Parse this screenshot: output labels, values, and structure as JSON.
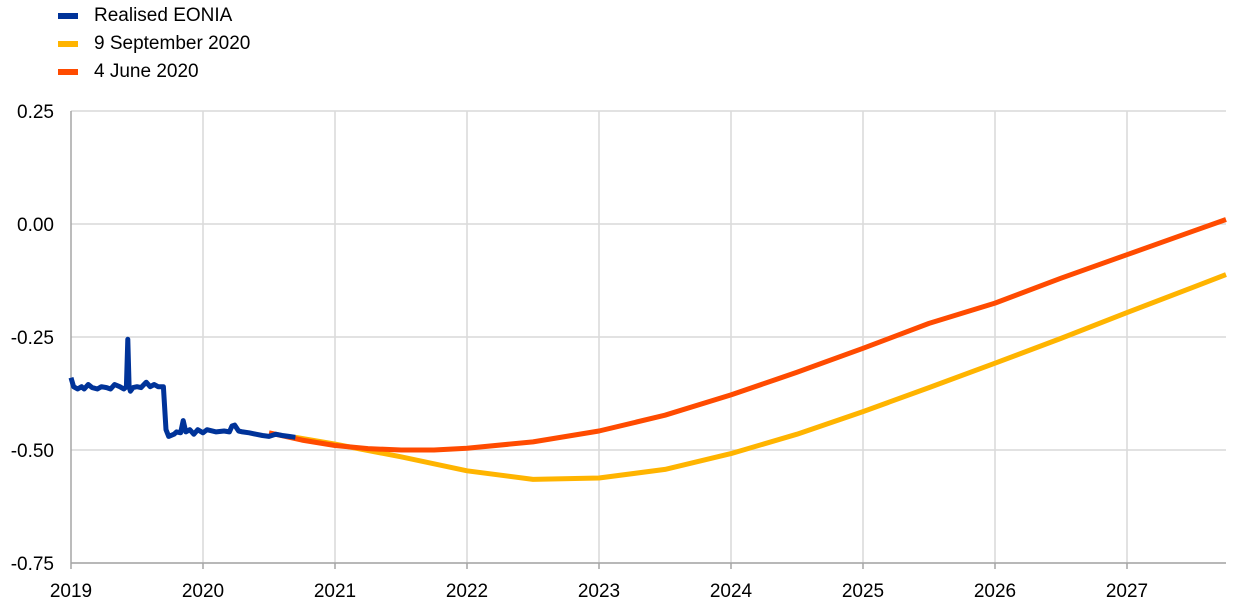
{
  "chart_data": {
    "type": "line",
    "title": "",
    "xlabel": "",
    "ylabel": "",
    "xlim": [
      2019,
      2027.75
    ],
    "ylim": [
      -0.75,
      0.25
    ],
    "x_ticks": [
      "2019",
      "2020",
      "2021",
      "2022",
      "2023",
      "2024",
      "2025",
      "2026",
      "2027"
    ],
    "y_ticks": [
      "0.25",
      "0.00",
      "-0.25",
      "-0.50",
      "-0.75"
    ],
    "grid": "vertical and horizontal",
    "legend_position": "top-left",
    "series": [
      {
        "name": "Realised EONIA",
        "color": "#003399",
        "points": [
          [
            2019.0,
            -0.34
          ],
          [
            2019.02,
            -0.36
          ],
          [
            2019.05,
            -0.365
          ],
          [
            2019.08,
            -0.36
          ],
          [
            2019.1,
            -0.365
          ],
          [
            2019.13,
            -0.355
          ],
          [
            2019.16,
            -0.362
          ],
          [
            2019.2,
            -0.365
          ],
          [
            2019.23,
            -0.36
          ],
          [
            2019.27,
            -0.362
          ],
          [
            2019.3,
            -0.365
          ],
          [
            2019.33,
            -0.355
          ],
          [
            2019.37,
            -0.36
          ],
          [
            2019.4,
            -0.365
          ],
          [
            2019.42,
            -0.36
          ],
          [
            2019.43,
            -0.255
          ],
          [
            2019.44,
            -0.36
          ],
          [
            2019.45,
            -0.37
          ],
          [
            2019.47,
            -0.362
          ],
          [
            2019.5,
            -0.36
          ],
          [
            2019.53,
            -0.362
          ],
          [
            2019.57,
            -0.35
          ],
          [
            2019.6,
            -0.36
          ],
          [
            2019.63,
            -0.355
          ],
          [
            2019.66,
            -0.36
          ],
          [
            2019.7,
            -0.36
          ],
          [
            2019.72,
            -0.455
          ],
          [
            2019.74,
            -0.47
          ],
          [
            2019.78,
            -0.465
          ],
          [
            2019.8,
            -0.46
          ],
          [
            2019.83,
            -0.462
          ],
          [
            2019.85,
            -0.435
          ],
          [
            2019.87,
            -0.46
          ],
          [
            2019.9,
            -0.455
          ],
          [
            2019.93,
            -0.465
          ],
          [
            2019.96,
            -0.455
          ],
          [
            2020.0,
            -0.462
          ],
          [
            2020.03,
            -0.455
          ],
          [
            2020.1,
            -0.46
          ],
          [
            2020.16,
            -0.458
          ],
          [
            2020.2,
            -0.46
          ],
          [
            2020.22,
            -0.447
          ],
          [
            2020.24,
            -0.445
          ],
          [
            2020.27,
            -0.458
          ],
          [
            2020.3,
            -0.46
          ],
          [
            2020.35,
            -0.462
          ],
          [
            2020.4,
            -0.465
          ],
          [
            2020.45,
            -0.468
          ],
          [
            2020.5,
            -0.47
          ],
          [
            2020.55,
            -0.465
          ],
          [
            2020.6,
            -0.468
          ],
          [
            2020.65,
            -0.47
          ],
          [
            2020.7,
            -0.472
          ]
        ]
      },
      {
        "name": "9 September 2020",
        "color": "#FFB400",
        "points": [
          [
            2020.7,
            -0.472
          ],
          [
            2021.0,
            -0.487
          ],
          [
            2021.5,
            -0.515
          ],
          [
            2022.0,
            -0.546
          ],
          [
            2022.5,
            -0.565
          ],
          [
            2023.0,
            -0.562
          ],
          [
            2023.5,
            -0.543
          ],
          [
            2024.0,
            -0.508
          ],
          [
            2024.5,
            -0.465
          ],
          [
            2025.0,
            -0.415
          ],
          [
            2025.5,
            -0.362
          ],
          [
            2026.0,
            -0.308
          ],
          [
            2026.5,
            -0.253
          ],
          [
            2027.0,
            -0.196
          ],
          [
            2027.5,
            -0.14
          ],
          [
            2027.75,
            -0.112
          ]
        ]
      },
      {
        "name": "4 June 2020",
        "color": "#FF4B00",
        "points": [
          [
            2020.5,
            -0.462
          ],
          [
            2020.75,
            -0.478
          ],
          [
            2021.0,
            -0.49
          ],
          [
            2021.25,
            -0.497
          ],
          [
            2021.5,
            -0.5
          ],
          [
            2021.75,
            -0.5
          ],
          [
            2022.0,
            -0.496
          ],
          [
            2022.5,
            -0.482
          ],
          [
            2023.0,
            -0.458
          ],
          [
            2023.5,
            -0.423
          ],
          [
            2024.0,
            -0.378
          ],
          [
            2024.5,
            -0.328
          ],
          [
            2025.0,
            -0.275
          ],
          [
            2025.5,
            -0.22
          ],
          [
            2026.0,
            -0.175
          ],
          [
            2026.5,
            -0.12
          ],
          [
            2027.0,
            -0.068
          ],
          [
            2027.5,
            -0.016
          ],
          [
            2027.75,
            0.01
          ]
        ]
      }
    ]
  }
}
